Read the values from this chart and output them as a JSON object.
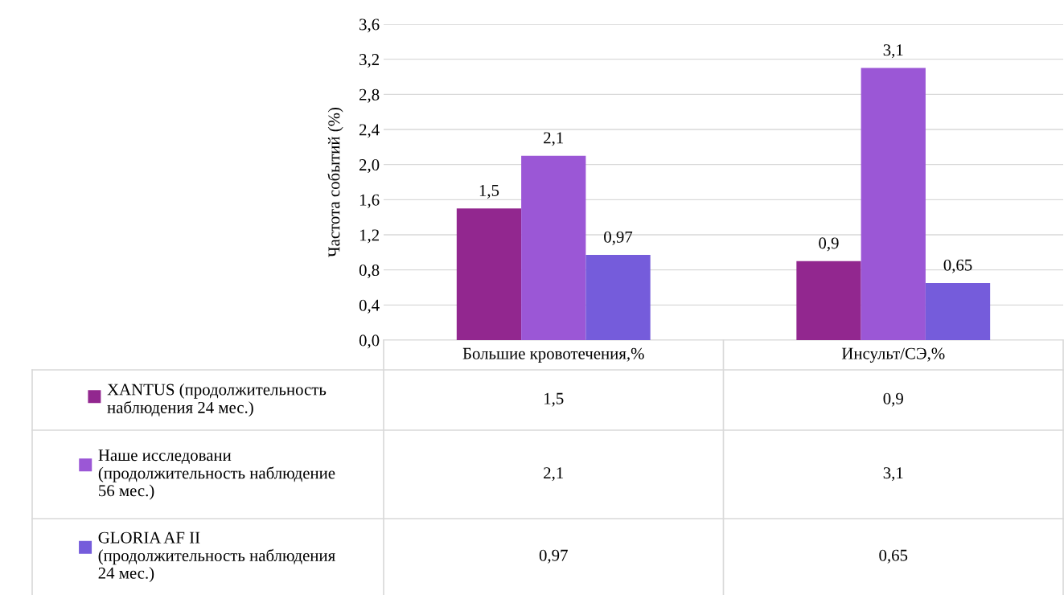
{
  "chart_data": {
    "type": "bar",
    "ylabel": "Частота событий (%)",
    "categories": [
      "Большие кровотечения,%",
      "Инсульт/СЭ,%"
    ],
    "series": [
      {
        "name": "XANTUS (продолжительность\nнаблюдения 24 мес.)",
        "color": "#92278f",
        "values": [
          1.5,
          0.9
        ],
        "value_labels": [
          "1,5",
          "0,9"
        ]
      },
      {
        "name": "Наше исследовани\n(продолжительность наблюдение\n56 мес.)",
        "color": "#9b57d6",
        "values": [
          2.1,
          3.1
        ],
        "value_labels": [
          "2,1",
          "3,1"
        ]
      },
      {
        "name": "GLORIA AF II\n(продолжительность наблюдения\n24 мес.)",
        "color": "#755cdb",
        "values": [
          0.97,
          0.65
        ],
        "value_labels": [
          "0,97",
          "0,65"
        ]
      }
    ],
    "ylim": [
      0,
      3.6
    ],
    "yticks": [
      {
        "value": 0,
        "label": "0,0"
      },
      {
        "value": 0.4,
        "label": "0,4"
      },
      {
        "value": 0.8,
        "label": "0,8"
      },
      {
        "value": 1.2,
        "label": "1,2"
      },
      {
        "value": 1.6,
        "label": "1,6"
      },
      {
        "value": 2.0,
        "label": "2,0"
      },
      {
        "value": 2.4,
        "label": "2,4"
      },
      {
        "value": 2.8,
        "label": "2,8"
      },
      {
        "value": 3.2,
        "label": "3,2"
      },
      {
        "value": 3.6,
        "label": "3,6"
      }
    ],
    "grid": "y",
    "data_labels": true,
    "legend": "bottom left"
  }
}
